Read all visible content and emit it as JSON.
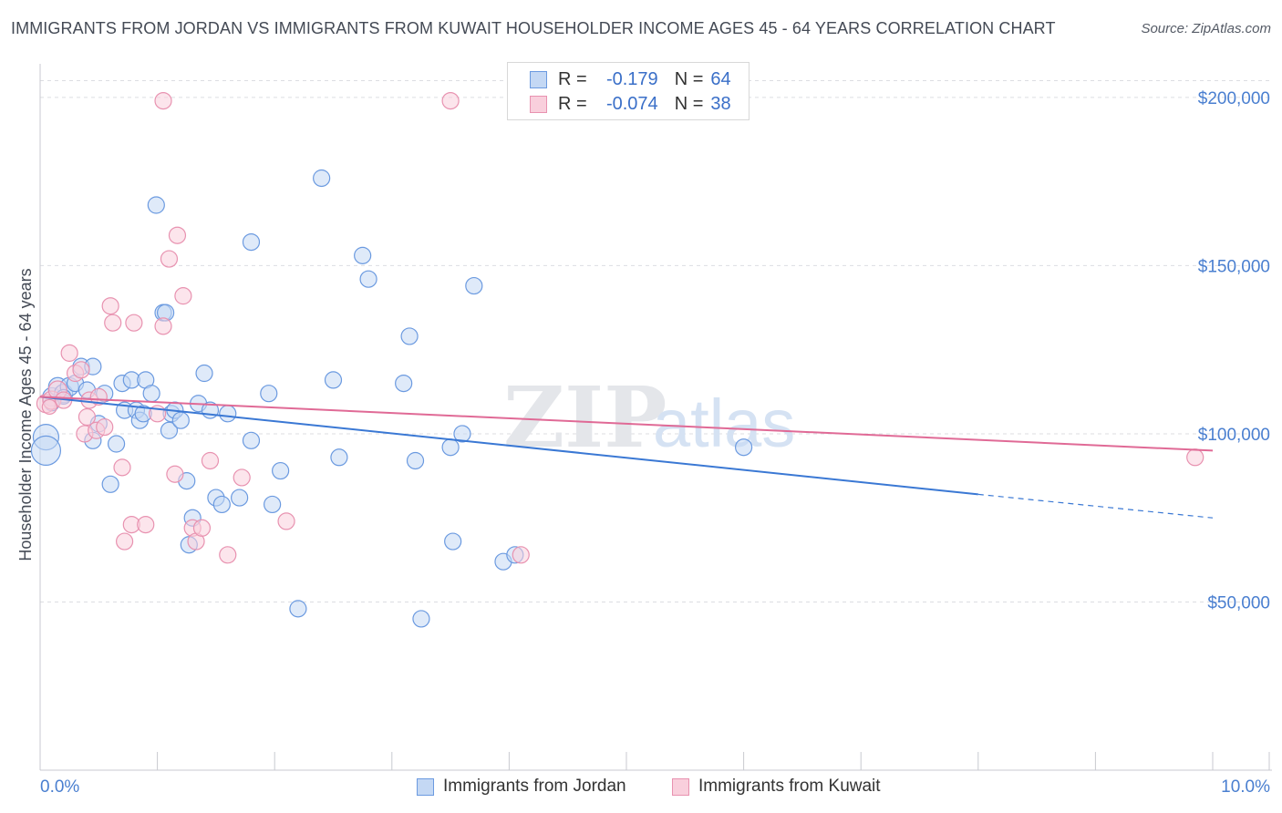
{
  "header": {
    "title": "IMMIGRANTS FROM JORDAN VS IMMIGRANTS FROM KUWAIT HOUSEHOLDER INCOME AGES 45 - 64 YEARS CORRELATION CHART",
    "source": "Source: ZipAtlas.com"
  },
  "legend": {
    "jordan": {
      "r_label": "R =",
      "r_value": "-0.179",
      "n_label": "N =",
      "n_value": "64"
    },
    "kuwait": {
      "r_label": "R =",
      "r_value": "-0.074",
      "n_label": "N =",
      "n_value": "38"
    }
  },
  "bottom_legend": {
    "jordan": "Immigrants from Jordan",
    "kuwait": "Immigrants from Kuwait"
  },
  "watermark": {
    "zip": "ZIP",
    "atlas": "atlas"
  },
  "colors": {
    "jordan_fill": "#c4d8f4",
    "jordan_stroke": "#6b9ae0",
    "jordan_line": "#3a78d4",
    "kuwait_fill": "#f9cfdc",
    "kuwait_stroke": "#e892b0",
    "kuwait_line": "#e06a96"
  },
  "chart_data": {
    "type": "scatter",
    "title": "IMMIGRANTS FROM JORDAN VS IMMIGRANTS FROM KUWAIT HOUSEHOLDER INCOME AGES 45 - 64 YEARS CORRELATION CHART",
    "xlabel": "",
    "ylabel": "Householder Income Ages 45 - 64 years",
    "xlim": [
      0,
      10
    ],
    "ylim": [
      0,
      210000
    ],
    "x_tick_labels": [
      "0.0%",
      "10.0%"
    ],
    "y_ticks": [
      50000,
      100000,
      150000,
      200000
    ],
    "y_tick_labels": [
      "$50,000",
      "$100,000",
      "$150,000",
      "$200,000"
    ],
    "grid": true,
    "series": [
      {
        "name": "Immigrants from Jordan",
        "trend": {
          "x0": 0.0,
          "y0": 111000,
          "x1": 8.0,
          "y1": 82000,
          "dashed_to_x": 10.0,
          "dashed_to_y": 75000
        },
        "points": [
          [
            0.05,
            99000,
            14
          ],
          [
            0.05,
            95000,
            16
          ],
          [
            0.1,
            111000,
            10
          ],
          [
            0.15,
            114000,
            10
          ],
          [
            0.2,
            112000,
            10
          ],
          [
            0.25,
            114000,
            10
          ],
          [
            0.3,
            115000,
            9
          ],
          [
            0.35,
            120000,
            9
          ],
          [
            0.4,
            113000,
            9
          ],
          [
            0.45,
            120000,
            9
          ],
          [
            0.45,
            98000,
            9
          ],
          [
            0.5,
            103000,
            9
          ],
          [
            0.55,
            112000,
            9
          ],
          [
            0.6,
            85000,
            9
          ],
          [
            0.65,
            97000,
            9
          ],
          [
            0.7,
            115000,
            9
          ],
          [
            0.72,
            107000,
            9
          ],
          [
            0.78,
            116000,
            9
          ],
          [
            0.82,
            107000,
            9
          ],
          [
            0.85,
            104000,
            9
          ],
          [
            0.88,
            106000,
            9
          ],
          [
            0.9,
            116000,
            9
          ],
          [
            0.95,
            112000,
            9
          ],
          [
            0.99,
            168000,
            9
          ],
          [
            1.05,
            136000,
            9
          ],
          [
            1.07,
            136000,
            9
          ],
          [
            1.1,
            101000,
            9
          ],
          [
            1.12,
            106000,
            9
          ],
          [
            1.15,
            107000,
            9
          ],
          [
            1.2,
            104000,
            9
          ],
          [
            1.25,
            86000,
            9
          ],
          [
            1.27,
            67000,
            9
          ],
          [
            1.3,
            75000,
            9
          ],
          [
            1.35,
            109000,
            9
          ],
          [
            1.4,
            118000,
            9
          ],
          [
            1.45,
            107000,
            9
          ],
          [
            1.5,
            81000,
            9
          ],
          [
            1.55,
            79000,
            9
          ],
          [
            1.6,
            106000,
            9
          ],
          [
            1.7,
            81000,
            9
          ],
          [
            1.8,
            98000,
            9
          ],
          [
            1.8,
            157000,
            9
          ],
          [
            1.95,
            112000,
            9
          ],
          [
            1.98,
            79000,
            9
          ],
          [
            2.05,
            89000,
            9
          ],
          [
            2.2,
            48000,
            9
          ],
          [
            2.4,
            176000,
            9
          ],
          [
            2.5,
            116000,
            9
          ],
          [
            2.55,
            93000,
            9
          ],
          [
            2.75,
            153000,
            9
          ],
          [
            2.8,
            146000,
            9
          ],
          [
            3.1,
            115000,
            9
          ],
          [
            3.15,
            129000,
            9
          ],
          [
            3.2,
            92000,
            9
          ],
          [
            3.25,
            45000,
            9
          ],
          [
            3.5,
            96000,
            9
          ],
          [
            3.52,
            68000,
            9
          ],
          [
            3.6,
            100000,
            9
          ],
          [
            3.7,
            144000,
            9
          ],
          [
            3.95,
            62000,
            9
          ],
          [
            4.05,
            64000,
            9
          ],
          [
            6.0,
            96000,
            9
          ],
          [
            0.1,
            109000,
            8
          ],
          [
            0.2,
            111000,
            8
          ]
        ]
      },
      {
        "name": "Immigrants from Kuwait",
        "trend": {
          "x0": 0.0,
          "y0": 111000,
          "x1": 10.0,
          "y1": 95000
        },
        "points": [
          [
            0.05,
            109000,
            10
          ],
          [
            0.1,
            110000,
            10
          ],
          [
            0.15,
            113000,
            10
          ],
          [
            0.2,
            110000,
            9
          ],
          [
            0.25,
            124000,
            9
          ],
          [
            0.3,
            118000,
            9
          ],
          [
            0.35,
            119000,
            9
          ],
          [
            0.38,
            100000,
            9
          ],
          [
            0.4,
            105000,
            9
          ],
          [
            0.42,
            110000,
            9
          ],
          [
            0.48,
            101000,
            9
          ],
          [
            0.5,
            111000,
            9
          ],
          [
            0.55,
            102000,
            9
          ],
          [
            0.6,
            138000,
            9
          ],
          [
            0.62,
            133000,
            9
          ],
          [
            0.7,
            90000,
            9
          ],
          [
            0.72,
            68000,
            9
          ],
          [
            0.78,
            73000,
            9
          ],
          [
            0.8,
            133000,
            9
          ],
          [
            0.9,
            73000,
            9
          ],
          [
            1.0,
            106000,
            9
          ],
          [
            1.05,
            132000,
            9
          ],
          [
            1.05,
            199000,
            9
          ],
          [
            1.1,
            152000,
            9
          ],
          [
            1.15,
            88000,
            9
          ],
          [
            1.17,
            159000,
            9
          ],
          [
            1.22,
            141000,
            9
          ],
          [
            1.3,
            72000,
            9
          ],
          [
            1.33,
            68000,
            9
          ],
          [
            1.38,
            72000,
            9
          ],
          [
            1.45,
            92000,
            9
          ],
          [
            1.6,
            64000,
            9
          ],
          [
            1.72,
            87000,
            9
          ],
          [
            2.1,
            74000,
            9
          ],
          [
            3.5,
            199000,
            9
          ],
          [
            4.1,
            64000,
            9
          ],
          [
            9.85,
            93000,
            9
          ],
          [
            0.08,
            108000,
            8
          ]
        ]
      }
    ]
  }
}
